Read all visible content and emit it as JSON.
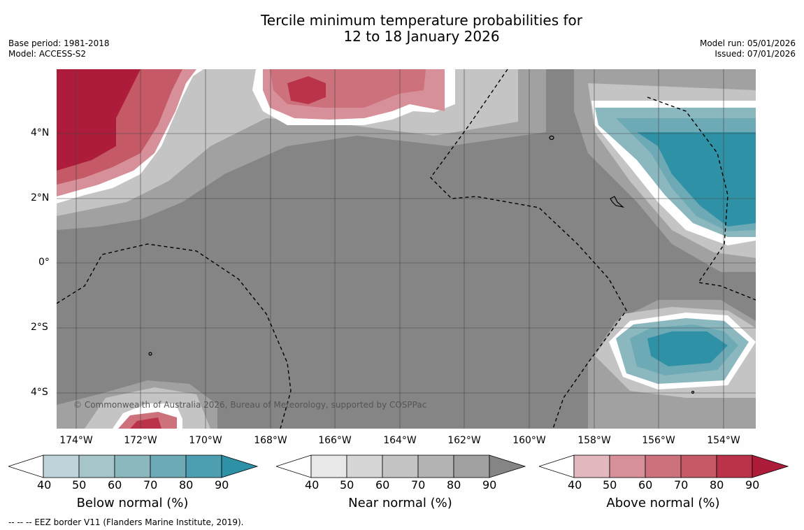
{
  "title": {
    "line1": "Tercile minimum temperature probabilities for",
    "line2": "12 to 18 January 2026"
  },
  "meta_left": {
    "base_period": "Base period: 1981-2018",
    "model": "Model: ACCESS-S2"
  },
  "meta_right": {
    "model_run": "Model run: 05/01/2026",
    "issued": "Issued: 07/01/2026"
  },
  "map": {
    "lat_labels": [
      "4°N",
      "2°N",
      "0°",
      "2°S",
      "4°S"
    ],
    "lon_labels": [
      "174°W",
      "172°W",
      "170°W",
      "168°W",
      "166°W",
      "164°W",
      "162°W",
      "160°W",
      "158°W",
      "156°W",
      "154°W"
    ],
    "copyright": "© Commonwealth of Australia 2026, Bureau of Meteorology, supported by COSPPac"
  },
  "colorbars": [
    {
      "title": "Below normal (%)",
      "ticks": [
        "40",
        "50",
        "60",
        "70",
        "80",
        "90"
      ],
      "colors": [
        "#bfd4da",
        "#a5c5cb",
        "#8bb7bf",
        "#6eaab6",
        "#4c9eb0",
        "#2e91a6"
      ]
    },
    {
      "title": "Near normal (%)",
      "ticks": [
        "40",
        "50",
        "60",
        "70",
        "80",
        "90"
      ],
      "colors": [
        "#e8e8e8",
        "#d6d6d6",
        "#c4c4c4",
        "#b3b3b3",
        "#a1a1a1",
        "#858585"
      ]
    },
    {
      "title": "Above normal (%)",
      "ticks": [
        "40",
        "50",
        "60",
        "70",
        "80",
        "90"
      ],
      "colors": [
        "#e2b7bd",
        "#d7909a",
        "#cd727d",
        "#c55a66",
        "#bb3349",
        "#ad1c3a"
      ]
    }
  ],
  "footnote": "--  --  -- EEZ border V11 (Flanders Marine Institute, 2019)."
}
